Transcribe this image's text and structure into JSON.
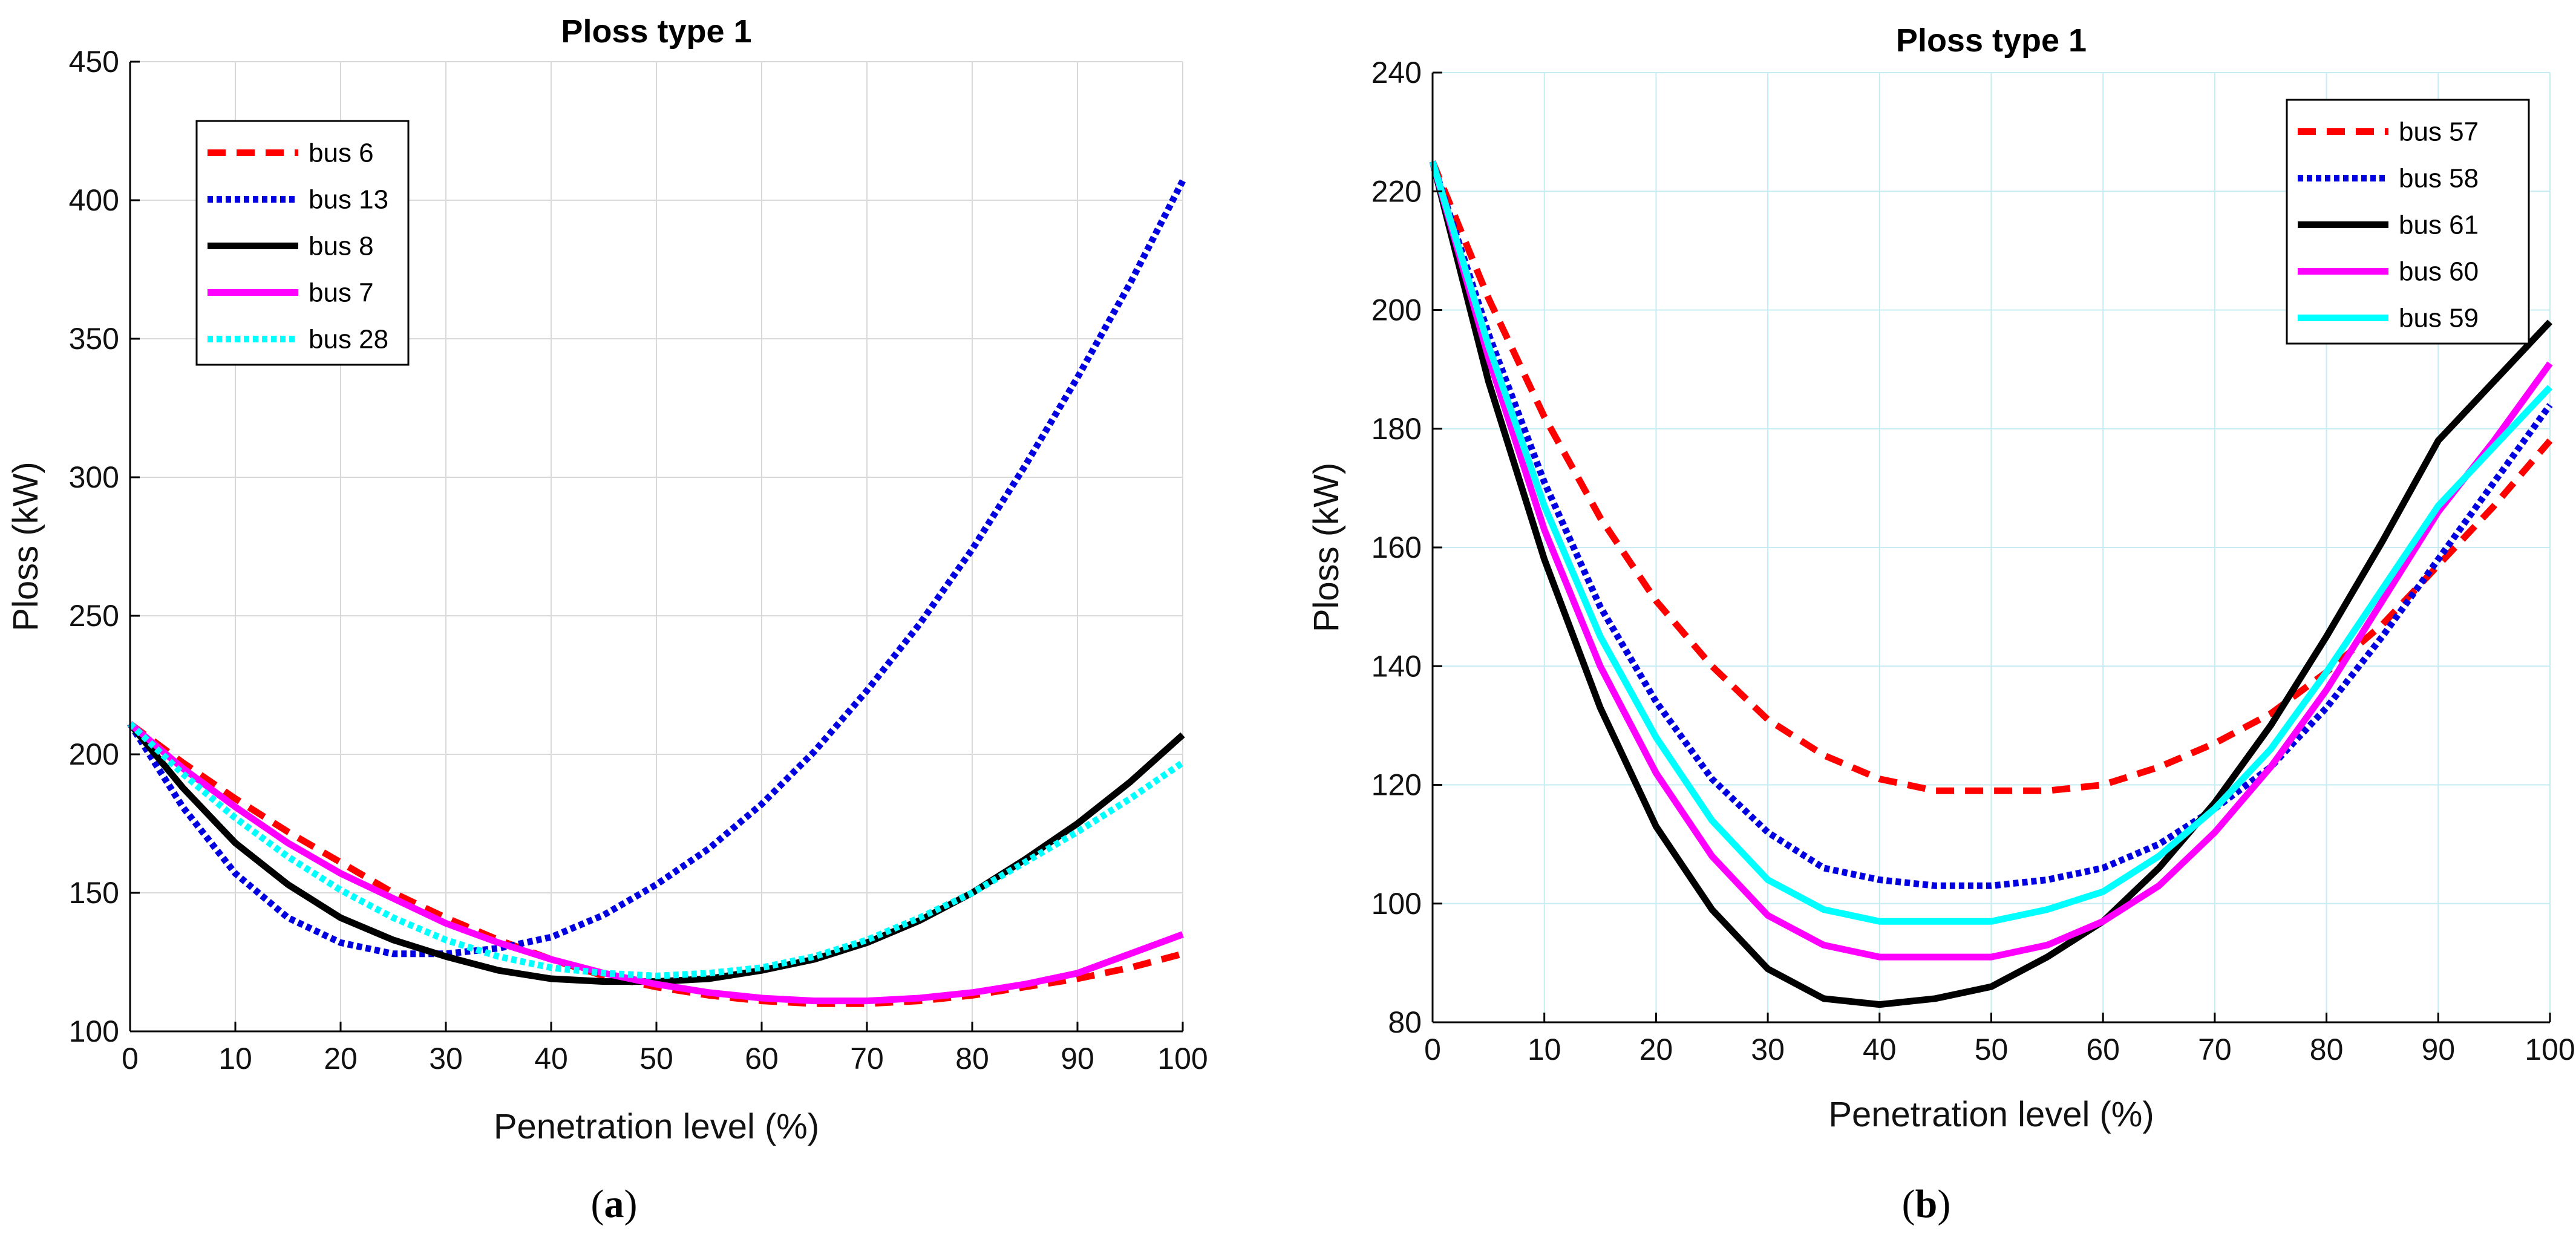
{
  "chart_data": [
    {
      "type": "line",
      "title": "Ploss type 1",
      "xlabel": "Penetration level (%)",
      "ylabel": "Ploss (kW)",
      "xlim": [
        0,
        100
      ],
      "ylim": [
        100,
        450
      ],
      "xticks": [
        0,
        10,
        20,
        30,
        40,
        50,
        60,
        70,
        80,
        90,
        100
      ],
      "yticks": [
        100,
        150,
        200,
        250,
        300,
        350,
        400,
        450
      ],
      "grid": true,
      "legend_position": "top-left",
      "panel_label": {
        "open": "(",
        "letter": "a",
        "close": ")"
      },
      "x": [
        0,
        5,
        10,
        15,
        20,
        25,
        30,
        35,
        40,
        45,
        50,
        55,
        60,
        65,
        70,
        75,
        80,
        85,
        90,
        95,
        100
      ],
      "series": [
        {
          "name": "bus 6",
          "color": "#ff0000",
          "dash": "dashed",
          "values": [
            211,
            197,
            184,
            172,
            161,
            150,
            141,
            133,
            126,
            120,
            116,
            113,
            111,
            110,
            110,
            111,
            113,
            116,
            119,
            123,
            128
          ]
        },
        {
          "name": "bus 13",
          "color": "#0000e0",
          "dash": "dotted",
          "values": [
            211,
            181,
            157,
            141,
            132,
            128,
            128,
            130,
            134,
            142,
            153,
            166,
            182,
            201,
            223,
            247,
            274,
            304,
            336,
            370,
            407
          ]
        },
        {
          "name": "bus 8",
          "color": "#000000",
          "dash": "solid",
          "values": [
            211,
            188,
            168,
            153,
            141,
            133,
            127,
            122,
            119,
            118,
            118,
            119,
            122,
            126,
            132,
            140,
            150,
            162,
            175,
            190,
            207
          ]
        },
        {
          "name": "bus 7",
          "color": "#ff00ff",
          "dash": "solid",
          "values": [
            211,
            195,
            181,
            168,
            157,
            148,
            139,
            132,
            126,
            121,
            117,
            114,
            112,
            111,
            111,
            112,
            114,
            117,
            121,
            128,
            135
          ]
        },
        {
          "name": "bus 28",
          "color": "#00ffff",
          "dash": "dotted",
          "values": [
            211,
            193,
            177,
            163,
            151,
            141,
            133,
            127,
            123,
            121,
            120,
            121,
            123,
            127,
            133,
            141,
            150,
            161,
            172,
            184,
            197
          ]
        }
      ]
    },
    {
      "type": "line",
      "title": "Ploss type 1",
      "xlabel": "Penetration level (%)",
      "ylabel": "Ploss (kW)",
      "xlim": [
        0,
        100
      ],
      "ylim": [
        80,
        240
      ],
      "xticks": [
        0,
        10,
        20,
        30,
        40,
        50,
        60,
        70,
        80,
        90,
        100
      ],
      "yticks": [
        80,
        100,
        120,
        140,
        160,
        180,
        200,
        220,
        240
      ],
      "grid": true,
      "legend_position": "top-right",
      "panel_label": {
        "open": "(",
        "letter": "b",
        "close": ")"
      },
      "x": [
        0,
        5,
        10,
        15,
        20,
        25,
        30,
        35,
        40,
        45,
        50,
        55,
        60,
        65,
        70,
        75,
        80,
        85,
        90,
        95,
        100
      ],
      "series": [
        {
          "name": "bus 57",
          "color": "#ff0000",
          "dash": "dashed",
          "values": [
            225,
            202,
            182,
            165,
            151,
            140,
            131,
            125,
            121,
            119,
            119,
            119,
            120,
            123,
            127,
            132,
            139,
            147,
            157,
            167,
            178
          ]
        },
        {
          "name": "bus 58",
          "color": "#0000e0",
          "dash": "dotted",
          "values": [
            225,
            196,
            171,
            150,
            134,
            121,
            112,
            106,
            104,
            103,
            103,
            104,
            106,
            110,
            116,
            123,
            133,
            145,
            158,
            171,
            184
          ]
        },
        {
          "name": "bus 61",
          "color": "#000000",
          "dash": "solid",
          "values": [
            225,
            188,
            158,
            133,
            113,
            99,
            89,
            84,
            83,
            84,
            86,
            91,
            97,
            106,
            117,
            130,
            145,
            161,
            178,
            188,
            198
          ]
        },
        {
          "name": "bus 60",
          "color": "#ff00ff",
          "dash": "solid",
          "values": [
            225,
            192,
            163,
            140,
            122,
            108,
            98,
            93,
            91,
            91,
            91,
            93,
            97,
            103,
            112,
            123,
            136,
            151,
            166,
            178,
            191
          ]
        },
        {
          "name": "bus 59",
          "color": "#00ffff",
          "dash": "solid",
          "values": [
            225,
            194,
            167,
            145,
            128,
            114,
            104,
            99,
            97,
            97,
            97,
            99,
            102,
            108,
            116,
            126,
            139,
            153,
            167,
            177,
            187
          ]
        }
      ]
    }
  ]
}
